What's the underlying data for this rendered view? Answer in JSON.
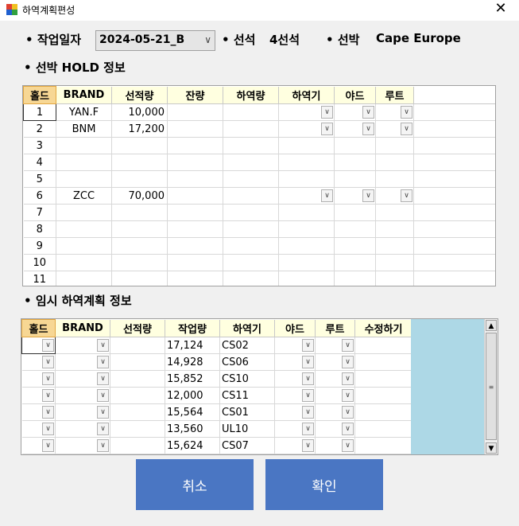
{
  "window": {
    "title": "하역계획편성"
  },
  "header": {
    "work_date_label": "작업일자",
    "work_date_value": "2024-05-21_B",
    "berth_label": "선석",
    "berth_value": "4선석",
    "vessel_label": "선박",
    "vessel_value": "Cape Europe"
  },
  "hold_section": {
    "title": "선박 HOLD 정보",
    "columns": [
      "홀드",
      "BRAND",
      "선적량",
      "잔량",
      "하역량",
      "하역기",
      "야드",
      "루트"
    ],
    "rows": [
      [
        "1",
        "YAN.F",
        "10,000",
        "",
        ""
      ],
      [
        "2",
        "BNM",
        "17,200",
        "",
        ""
      ],
      [
        "3",
        "",
        "",
        "",
        ""
      ],
      [
        "4",
        "",
        "",
        "",
        ""
      ],
      [
        "5",
        "",
        "",
        "",
        ""
      ],
      [
        "6",
        "ZCC",
        "70,000",
        "",
        ""
      ],
      [
        "7",
        "",
        "",
        "",
        ""
      ],
      [
        "8",
        "",
        "",
        "",
        ""
      ],
      [
        "9",
        "",
        "",
        "",
        ""
      ],
      [
        "10",
        "",
        "",
        "",
        ""
      ],
      [
        "11",
        "",
        "",
        "",
        ""
      ]
    ]
  },
  "temp_section": {
    "title": "임시 하역계획 정보",
    "columns": [
      "홀드",
      "BRAND",
      "선적량",
      "작업량",
      "하역기",
      "야드",
      "루트",
      "수정하기"
    ],
    "rows": [
      [
        "",
        "",
        "",
        "17,124",
        "CS02",
        "",
        "",
        ""
      ],
      [
        "",
        "",
        "",
        "14,928",
        "CS06",
        "",
        "",
        ""
      ],
      [
        "",
        "",
        "",
        "15,852",
        "CS10",
        "",
        "",
        ""
      ],
      [
        "",
        "",
        "",
        "12,000",
        "CS11",
        "",
        "",
        ""
      ],
      [
        "",
        "",
        "",
        "15,564",
        "CS01",
        "",
        "",
        ""
      ],
      [
        "",
        "",
        "",
        "13,560",
        "UL10",
        "",
        "",
        ""
      ],
      [
        "",
        "",
        "",
        "15,624",
        "CS07",
        "",
        "",
        ""
      ]
    ]
  },
  "buttons": {
    "cancel": "취소",
    "confirm": "확인"
  },
  "colors": {
    "button_bg": "#4a76c3",
    "grid_header_bg": "#ffffe0",
    "grid_empty_bg": "#add8e6"
  }
}
